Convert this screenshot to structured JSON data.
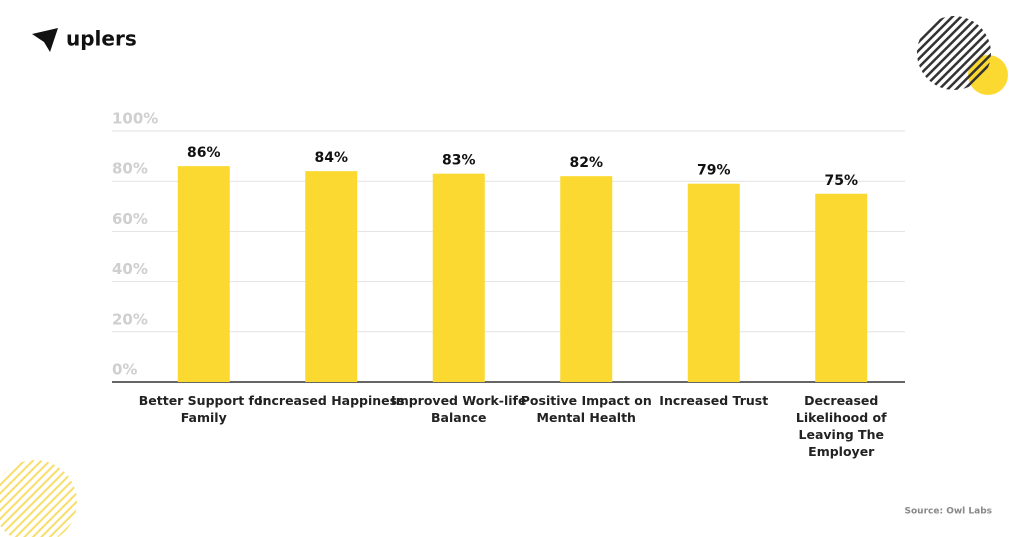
{
  "brand": "uplers",
  "source": "Source: Owl Labs",
  "chart_data": {
    "type": "bar",
    "categories": [
      "Better Support for Family",
      "Increased Happiness",
      "Improved Work-life Balance",
      "Positive Impact on Mental Health",
      "Increased Trust",
      "Decreased Likelihood of Leaving The Employer"
    ],
    "values": [
      86,
      84,
      83,
      82,
      79,
      75
    ],
    "value_labels": [
      "86%",
      "84%",
      "83%",
      "82%",
      "79%",
      "75%"
    ],
    "color": "#fcd930",
    "ylim": [
      0,
      100
    ],
    "yticks": [
      {
        "value": 0,
        "label": "0%"
      },
      {
        "value": 20,
        "label": "20%"
      },
      {
        "value": 40,
        "label": "40%"
      },
      {
        "value": 60,
        "label": "60%"
      },
      {
        "value": 80,
        "label": "80%"
      },
      {
        "value": 100,
        "label": "100%"
      }
    ],
    "grid": true
  }
}
